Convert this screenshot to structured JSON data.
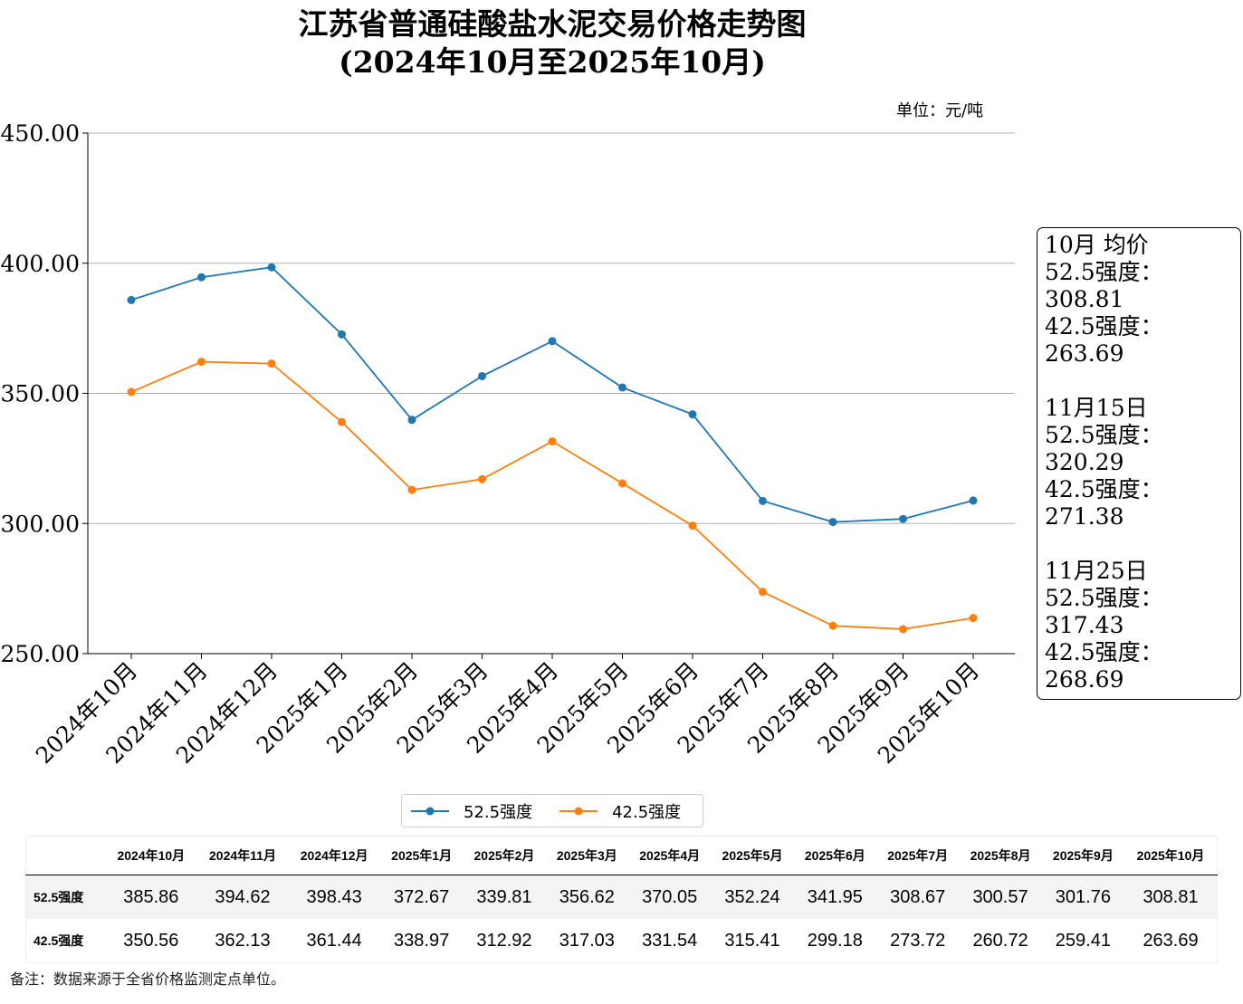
{
  "chart_data": {
    "type": "line",
    "title": "江苏省普通硅酸盐水泥交易价格走势图",
    "subtitle": "(2024年10月至2025年10月)",
    "unit_label": "单位：元/吨",
    "categories": [
      "2024年10月",
      "2024年11月",
      "2024年12月",
      "2025年1月",
      "2025年2月",
      "2025年3月",
      "2025年4月",
      "2025年5月",
      "2025年6月",
      "2025年7月",
      "2025年8月",
      "2025年9月",
      "2025年10月"
    ],
    "series": [
      {
        "name": "52.5强度",
        "color": "#1f77b4",
        "values": [
          385.86,
          394.62,
          398.43,
          372.67,
          339.81,
          356.62,
          370.05,
          352.24,
          341.95,
          308.67,
          300.57,
          301.76,
          308.81
        ]
      },
      {
        "name": "42.5强度",
        "color": "#ff7f0e",
        "values": [
          350.56,
          362.13,
          361.44,
          338.97,
          312.92,
          317.03,
          331.54,
          315.41,
          299.18,
          273.72,
          260.72,
          259.41,
          263.69
        ]
      }
    ],
    "ylim": [
      250,
      450
    ],
    "yticks": [
      "250.00",
      "300.00",
      "350.00",
      "400.00",
      "450.00"
    ],
    "grid": "horizontal",
    "legend": "bottom-center"
  },
  "annotation": {
    "blocks": [
      {
        "title": "10月 均价",
        "l1": "52.5强度：308.81",
        "l2": "42.5强度：263.69"
      },
      {
        "title": "11月15日",
        "l1": "52.5强度：320.29",
        "l2": "42.5强度：271.38"
      },
      {
        "title": "11月25日",
        "l1": "52.5强度：317.43",
        "l2": "42.5强度：268.69"
      }
    ]
  },
  "note": "备注：数据来源于全省价格监测定点单位。"
}
